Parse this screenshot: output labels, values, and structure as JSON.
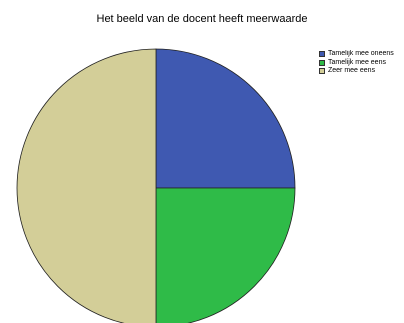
{
  "chart_data": {
    "type": "pie",
    "title": "Het beeld van de docent heeft meerwaarde",
    "legend_position": "top-right",
    "slices": [
      {
        "label": "Tamelijk mee oneens",
        "value": 25,
        "color": "#3f59b1"
      },
      {
        "label": "Tamelijk mee eens",
        "value": 25,
        "color": "#2fbb48"
      },
      {
        "label": "Zeer mee eens",
        "value": 50,
        "color": "#d3ce98"
      }
    ]
  }
}
